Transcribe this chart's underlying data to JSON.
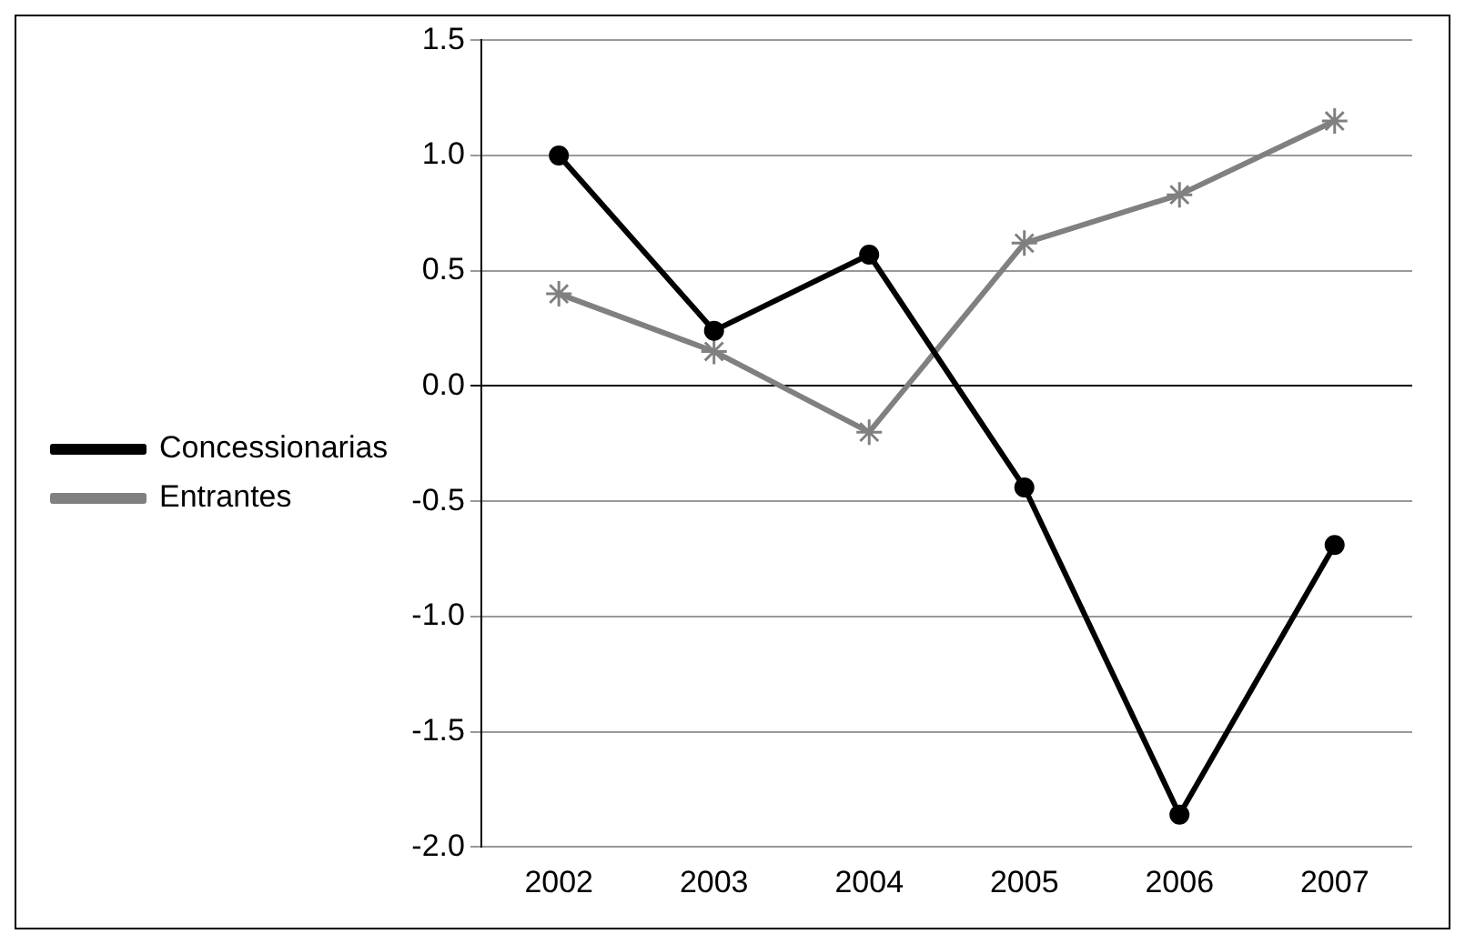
{
  "chart_data": {
    "type": "line",
    "categories": [
      "2002",
      "2003",
      "2004",
      "2005",
      "2006",
      "2007"
    ],
    "series": [
      {
        "name": "Concessionarias",
        "color": "#000000",
        "marker": "circle",
        "values": [
          1.0,
          0.24,
          0.57,
          -0.44,
          -1.86,
          -0.69
        ]
      },
      {
        "name": "Entrantes",
        "color": "#808080",
        "marker": "cross",
        "values": [
          0.4,
          0.15,
          -0.2,
          0.62,
          0.83,
          1.15
        ]
      }
    ],
    "ylim": [
      -2.0,
      1.5
    ],
    "yticks": [
      {
        "value": -2,
        "label": "-2.0"
      },
      {
        "value": -1.5,
        "label": "-1.5"
      },
      {
        "value": -1,
        "label": "-1.0"
      },
      {
        "value": -0.5,
        "label": "-0.5"
      },
      {
        "value": 0,
        "label": "0.0"
      },
      {
        "value": 0.5,
        "label": "0.5"
      },
      {
        "value": 1,
        "label": "1.0"
      },
      {
        "value": 1.5,
        "label": "1.5"
      }
    ],
    "grid": "y",
    "legend": "left",
    "line_style": "solid"
  }
}
